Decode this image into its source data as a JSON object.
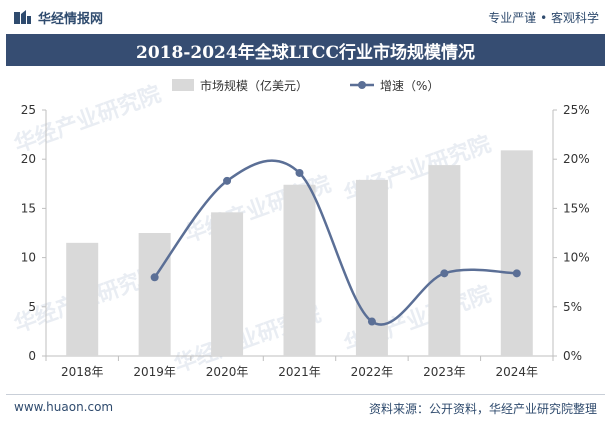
{
  "header": {
    "brand_name": "华经情报网",
    "tagline": "专业严谨 • 客观科学"
  },
  "title": "2018-2024年全球LTCC行业市场规模情况",
  "footer": {
    "url": "www.huaon.com",
    "source": "资料来源：公开资料，华经产业研究院整理"
  },
  "watermark": "华经产业研究院",
  "colors": {
    "bar": "#d9d9d9",
    "line": "#5b6f96",
    "title_bg": "#364d72",
    "text": "#2f4b6e"
  },
  "chart_data": {
    "type": "bar",
    "categories": [
      "2018年",
      "2019年",
      "2020年",
      "2021年",
      "2022年",
      "2023年",
      "2024年"
    ],
    "series": [
      {
        "name": "市场规模（亿美元）",
        "type": "bar",
        "axis": "left",
        "values": [
          11.5,
          12.5,
          14.6,
          17.4,
          17.9,
          19.4,
          20.9
        ]
      },
      {
        "name": "增速（%）",
        "type": "line",
        "axis": "right",
        "smooth": true,
        "values": [
          null,
          8.0,
          17.8,
          18.6,
          3.5,
          8.4,
          8.4
        ]
      }
    ],
    "y_left": {
      "min": 0,
      "max": 25,
      "ticks": [
        "0",
        "5",
        "10",
        "15",
        "20",
        "25"
      ]
    },
    "y_right": {
      "min": 0,
      "max": 25,
      "ticks": [
        "0%",
        "5%",
        "10%",
        "15%",
        "20%",
        "25%"
      ]
    },
    "grid": "none",
    "legend": "top-center"
  }
}
